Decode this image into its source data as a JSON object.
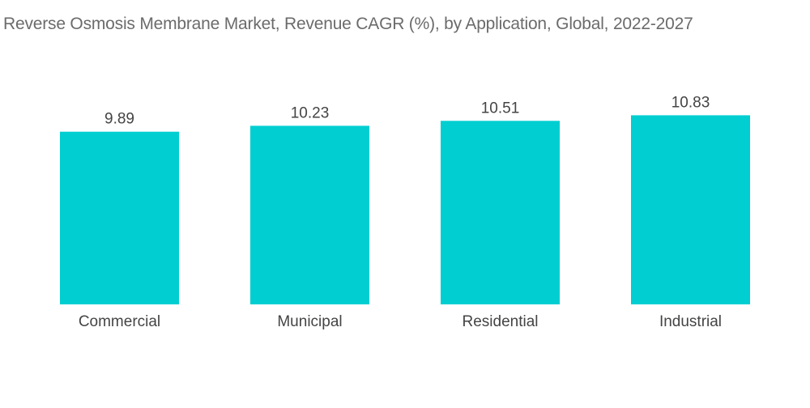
{
  "chart_data": {
    "type": "bar",
    "title": "Reverse Osmosis Membrane Market, Revenue CAGR (%), by Application, Global, 2022-2027",
    "categories": [
      "Commercial",
      "Municipal",
      "Residential",
      "Industrial"
    ],
    "values": [
      9.89,
      10.23,
      10.51,
      10.83
    ],
    "value_labels": [
      "9.89",
      "10.23",
      "10.51",
      "10.83"
    ],
    "xlabel": "",
    "ylabel": "",
    "ylim": [
      0,
      11.5
    ],
    "grid": false,
    "legend": "none",
    "bar_color": "#00CED1"
  }
}
